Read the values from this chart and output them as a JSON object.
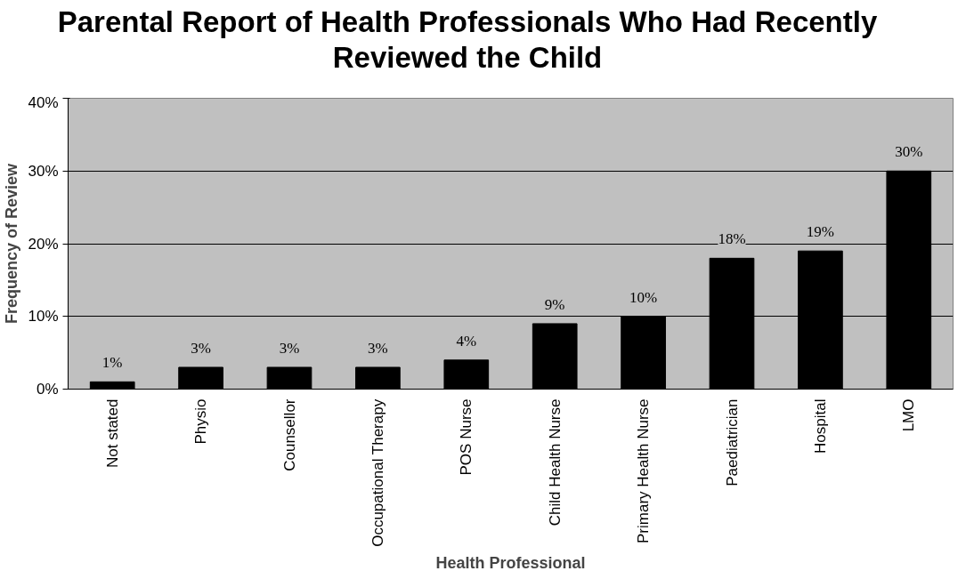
{
  "chart_data": {
    "type": "bar",
    "title": "Parental Report of Health Professionals Who Had Recently Reviewed the Child",
    "xlabel": "Health Professional",
    "ylabel": "Frequency of Review",
    "categories": [
      "Not stated",
      "Physio",
      "Counsellor",
      "Occupational Therapy",
      "POS Nurse",
      "Child Health Nurse",
      "Primary Health Nurse",
      "Paediatrician",
      "Hospital",
      "LMO"
    ],
    "values": [
      1,
      3,
      3,
      3,
      4,
      9,
      10,
      18,
      19,
      30
    ],
    "value_labels": [
      "1%",
      "3%",
      "3%",
      "3%",
      "4%",
      "9%",
      "10%",
      "18%",
      "19%",
      "30%"
    ],
    "color": "#000000",
    "ylim": [
      0,
      40
    ],
    "yticks": [
      {
        "value": 0,
        "label": "0%"
      },
      {
        "value": 10,
        "label": "10%"
      },
      {
        "value": 20,
        "label": "20%"
      },
      {
        "value": 30,
        "label": "30%"
      },
      {
        "value": 40,
        "label": "40%"
      }
    ],
    "grid": "y"
  }
}
